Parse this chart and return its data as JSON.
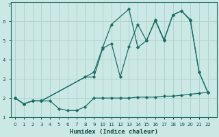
{
  "xlabel": "Humidex (Indice chaleur)",
  "bg_color": "#cce8e4",
  "line_color": "#1a6e64",
  "grid_color": "#add4cf",
  "xlim": [
    -0.5,
    23
  ],
  "ylim": [
    1.0,
    7.0
  ],
  "yticks": [
    1,
    2,
    3,
    4,
    5,
    6
  ],
  "xticks": [
    0,
    1,
    2,
    3,
    4,
    5,
    6,
    7,
    8,
    9,
    10,
    11,
    12,
    13,
    14,
    15,
    16,
    17,
    18,
    19,
    20,
    21,
    22
  ],
  "line1_x": [
    0,
    1,
    2,
    3,
    4,
    5,
    6,
    7,
    8,
    9,
    10,
    11,
    12,
    13,
    14,
    15,
    16,
    17,
    18,
    19,
    20,
    21,
    22
  ],
  "line1_y": [
    2.0,
    1.7,
    1.85,
    1.85,
    1.85,
    1.45,
    1.35,
    1.35,
    1.55,
    2.0,
    2.0,
    2.0,
    2.0,
    2.0,
    2.05,
    2.05,
    2.05,
    2.1,
    2.1,
    2.15,
    2.2,
    2.25,
    2.3
  ],
  "line2_x": [
    0,
    1,
    2,
    3,
    8,
    9,
    10,
    11,
    12,
    13,
    14,
    15,
    16,
    17,
    18,
    19,
    20,
    21,
    22
  ],
  "line2_y": [
    2.0,
    1.7,
    1.85,
    1.85,
    3.1,
    3.1,
    4.6,
    4.85,
    3.1,
    4.7,
    5.85,
    5.0,
    6.05,
    5.0,
    6.35,
    6.55,
    6.05,
    3.35,
    2.3
  ],
  "line3_x": [
    0,
    1,
    2,
    3,
    9,
    10,
    11,
    13,
    14,
    15,
    16,
    17,
    18,
    19,
    20,
    21,
    22
  ],
  "line3_y": [
    2.0,
    1.7,
    1.85,
    1.85,
    3.35,
    4.65,
    5.85,
    6.65,
    4.65,
    5.0,
    6.1,
    5.05,
    6.35,
    6.55,
    6.1,
    3.35,
    2.3
  ]
}
